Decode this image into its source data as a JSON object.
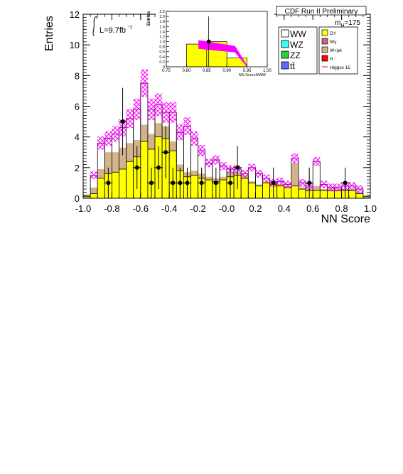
{
  "header": {
    "experiment": "CDF Run II Preliminary",
    "luminosity": "L=9.7fb",
    "luminosity_sup": "-1",
    "mass_label_m": "m",
    "mass_label_sub": "H",
    "mass_label_value": "=175"
  },
  "legend": {
    "left": [
      {
        "label": "WW",
        "color": "#ffffff"
      },
      {
        "label": "WZ",
        "color": "#33ffff"
      },
      {
        "label": "ZZ",
        "color": "#33cc33"
      },
      {
        "label": "tt̄",
        "color": "#6666ff"
      }
    ],
    "right": [
      {
        "label": "DY",
        "color": "#ffff00"
      },
      {
        "label": "Wγ",
        "color": "#cc6677"
      },
      {
        "label": "W+jet",
        "color": "#d2b48c"
      },
      {
        "label": "H",
        "color": "#ff0000"
      },
      {
        "label": "Higgsx 15",
        "color": "#ff0000",
        "line": true
      }
    ]
  },
  "chart_data": [
    {
      "type": "bar",
      "xlabel": "NN Score",
      "ylabel": "Entries",
      "xlim": [
        -1.0,
        1.0
      ],
      "ylim": [
        0,
        12
      ],
      "xticks": [
        "-1.0",
        "-0.8",
        "-0.6",
        "-0.4",
        "-0.2",
        "-0.0",
        "0.2",
        "0.4",
        "0.6",
        "0.8",
        "1.0"
      ],
      "yticks": [
        "0",
        "2",
        "4",
        "6",
        "8",
        "10",
        "12"
      ],
      "bin_width": 0.05,
      "bin_edges_start": -1.0,
      "series": [
        {
          "name": "DY",
          "color": "#ffff00",
          "values": [
            0.1,
            0.3,
            1.3,
            1.6,
            1.7,
            1.9,
            2.4,
            2.7,
            3.7,
            3.2,
            4.0,
            3.9,
            3.1,
            1.8,
            1.4,
            1.5,
            1.3,
            1.2,
            1.1,
            1.2,
            1.4,
            1.5,
            1.3,
            1.0,
            0.8,
            1.0,
            0.9,
            0.8,
            0.7,
            0.8,
            0.6,
            0.5,
            0.5,
            0.5,
            0.5,
            0.5,
            0.5,
            0.5,
            0.3,
            0.1
          ]
        },
        {
          "name": "Wγ",
          "color": "#cc6677",
          "values": [
            0.0,
            0.0,
            0.0,
            0.0,
            0.0,
            0.0,
            0.0,
            0.0,
            0.0,
            0.0,
            0.0,
            0.0,
            0.0,
            0.0,
            0.0,
            0.0,
            0.0,
            0.0,
            0.0,
            0.0,
            0.0,
            0.0,
            0.0,
            0.0,
            0.0,
            0.0,
            0.0,
            0.0,
            0.0,
            0.0,
            0.0,
            0.0,
            0.0,
            0.0,
            0.0,
            0.0,
            0.0,
            0.0,
            0.0,
            0.0
          ]
        },
        {
          "name": "W+jet",
          "color": "#d2b48c",
          "values": [
            0.1,
            0.4,
            0.6,
            1.4,
            1.3,
            1.4,
            1.2,
            1.1,
            1.1,
            1.0,
            0.9,
            0.8,
            0.6,
            0.4,
            0.3,
            0.3,
            0.3,
            0.2,
            0.2,
            0.2,
            0.3,
            0.2,
            0.2,
            0.1,
            0.1,
            0.1,
            0.1,
            0.1,
            0.1,
            1.5,
            0.1,
            0.1,
            0.3,
            0.1,
            0.1,
            0.1,
            0.1,
            0.1,
            0.1,
            0.1
          ]
        }
      ],
      "stack_total": [
        0.2,
        1.5,
        3.6,
        3.9,
        4.2,
        4.6,
        5.2,
        5.8,
        7.5,
        5.8,
        6.1,
        5.6,
        5.6,
        4.3,
        4.7,
        3.9,
        3.1,
        2.3,
        2.5,
        2.1,
        1.9,
        1.9,
        1.6,
        2.0,
        1.6,
        1.3,
        1.0,
        1.1,
        0.9,
        2.6,
        1.0,
        0.8,
        2.4,
        0.9,
        0.7,
        0.7,
        0.8,
        0.8,
        0.6,
        0.1
      ],
      "data_points": [
        {
          "x": -0.825,
          "y": 1,
          "err": 1.0
        },
        {
          "x": -0.725,
          "y": 5,
          "err": 2.2
        },
        {
          "x": -0.625,
          "y": 2,
          "err": 1.4
        },
        {
          "x": -0.525,
          "y": 1,
          "err": 1.0
        },
        {
          "x": -0.475,
          "y": 2,
          "err": 1.4
        },
        {
          "x": -0.425,
          "y": 3,
          "err": 1.7
        },
        {
          "x": -0.375,
          "y": 1,
          "err": 1.0
        },
        {
          "x": -0.325,
          "y": 1,
          "err": 1.0
        },
        {
          "x": -0.275,
          "y": 1,
          "err": 1.0
        },
        {
          "x": -0.175,
          "y": 1,
          "err": 1.0
        },
        {
          "x": -0.075,
          "y": 1,
          "err": 1.0
        },
        {
          "x": 0.025,
          "y": 1,
          "err": 1.0
        },
        {
          "x": 0.075,
          "y": 2,
          "err": 1.4
        },
        {
          "x": 0.325,
          "y": 1,
          "err": 1.0
        },
        {
          "x": 0.575,
          "y": 1,
          "err": 1.0
        },
        {
          "x": 0.825,
          "y": 1,
          "err": 1.0
        }
      ]
    },
    {
      "type": "bar",
      "xlabel": "NN ScoreHWW",
      "ylabel": "Entries",
      "xlim": [
        0.75,
        1.0
      ],
      "ylim": [
        0,
        2.2
      ],
      "xticks": [
        "0.75",
        "0.80",
        "0.85",
        "0.90",
        "0.95",
        "1.00"
      ],
      "yticks": [
        "0",
        "0.2",
        "0.4",
        "0.6",
        "0.8",
        "1.0",
        "1.2",
        "1.4",
        "1.6",
        "1.8",
        "2.0",
        "2.2"
      ],
      "bin_edges": [
        0.8,
        0.85,
        0.9,
        0.95,
        1.0
      ],
      "series": [
        {
          "name": "DY",
          "color": "#ffff00",
          "values": [
            0.9,
            1.0,
            0.35,
            0.0
          ]
        }
      ],
      "signal_band": {
        "name": "Higgsx 15",
        "x": [
          0.83,
          0.92,
          0.95
        ],
        "lower": [
          0.72,
          0.58,
          0.0
        ],
        "upper": [
          1.05,
          0.82,
          0.05
        ]
      },
      "data_points": [
        {
          "x": 0.855,
          "y": 1,
          "err": 1.0
        }
      ]
    }
  ]
}
